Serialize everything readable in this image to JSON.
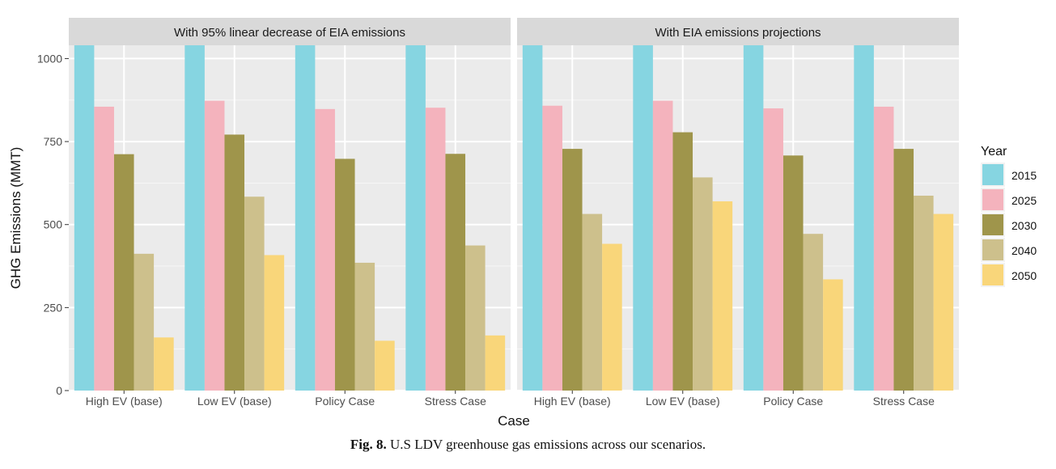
{
  "caption": {
    "label": "Fig. 8.",
    "text": "U.S LDV greenhouse gas emissions across our scenarios."
  },
  "colors": {
    "2015": "#86d5e1",
    "2025": "#f4b3bd",
    "2030": "#9f954b",
    "2040": "#cdc08c",
    "2050": "#f9d67a",
    "panel_bg": "#ebebeb",
    "strip_bg": "#d9d9d9",
    "grid": "#ffffff"
  },
  "chart_data": {
    "type": "bar",
    "ylabel": "GHG Emissions (MMT)",
    "xlabel": "Case",
    "ylim": [
      0,
      1040
    ],
    "yticks": [
      0,
      250,
      500,
      750,
      1000
    ],
    "grid": true,
    "legend": {
      "title": "Year",
      "position": "right",
      "entries": [
        "2015",
        "2025",
        "2030",
        "2040",
        "2050"
      ]
    },
    "categories": [
      "High EV (base)",
      "Low EV (base)",
      "Policy Case",
      "Stress Case"
    ],
    "panels": [
      {
        "title": "With 95% linear decrease of EIA emissions",
        "series": [
          {
            "name": "2015",
            "values": [
              1040,
              1040,
              1040,
              1040
            ]
          },
          {
            "name": "2025",
            "values": [
              855,
              873,
              848,
              852
            ]
          },
          {
            "name": "2030",
            "values": [
              712,
              771,
              698,
              713
            ]
          },
          {
            "name": "2040",
            "values": [
              412,
              584,
              385,
              437
            ]
          },
          {
            "name": "2050",
            "values": [
              160,
              408,
              150,
              166
            ]
          }
        ]
      },
      {
        "title": "With EIA emissions projections",
        "series": [
          {
            "name": "2015",
            "values": [
              1040,
              1040,
              1040,
              1040
            ]
          },
          {
            "name": "2025",
            "values": [
              858,
              873,
              850,
              855
            ]
          },
          {
            "name": "2030",
            "values": [
              728,
              778,
              708,
              728
            ]
          },
          {
            "name": "2040",
            "values": [
              532,
              642,
              472,
              587
            ]
          },
          {
            "name": "2050",
            "values": [
              442,
              570,
              335,
              532
            ]
          }
        ]
      }
    ]
  }
}
